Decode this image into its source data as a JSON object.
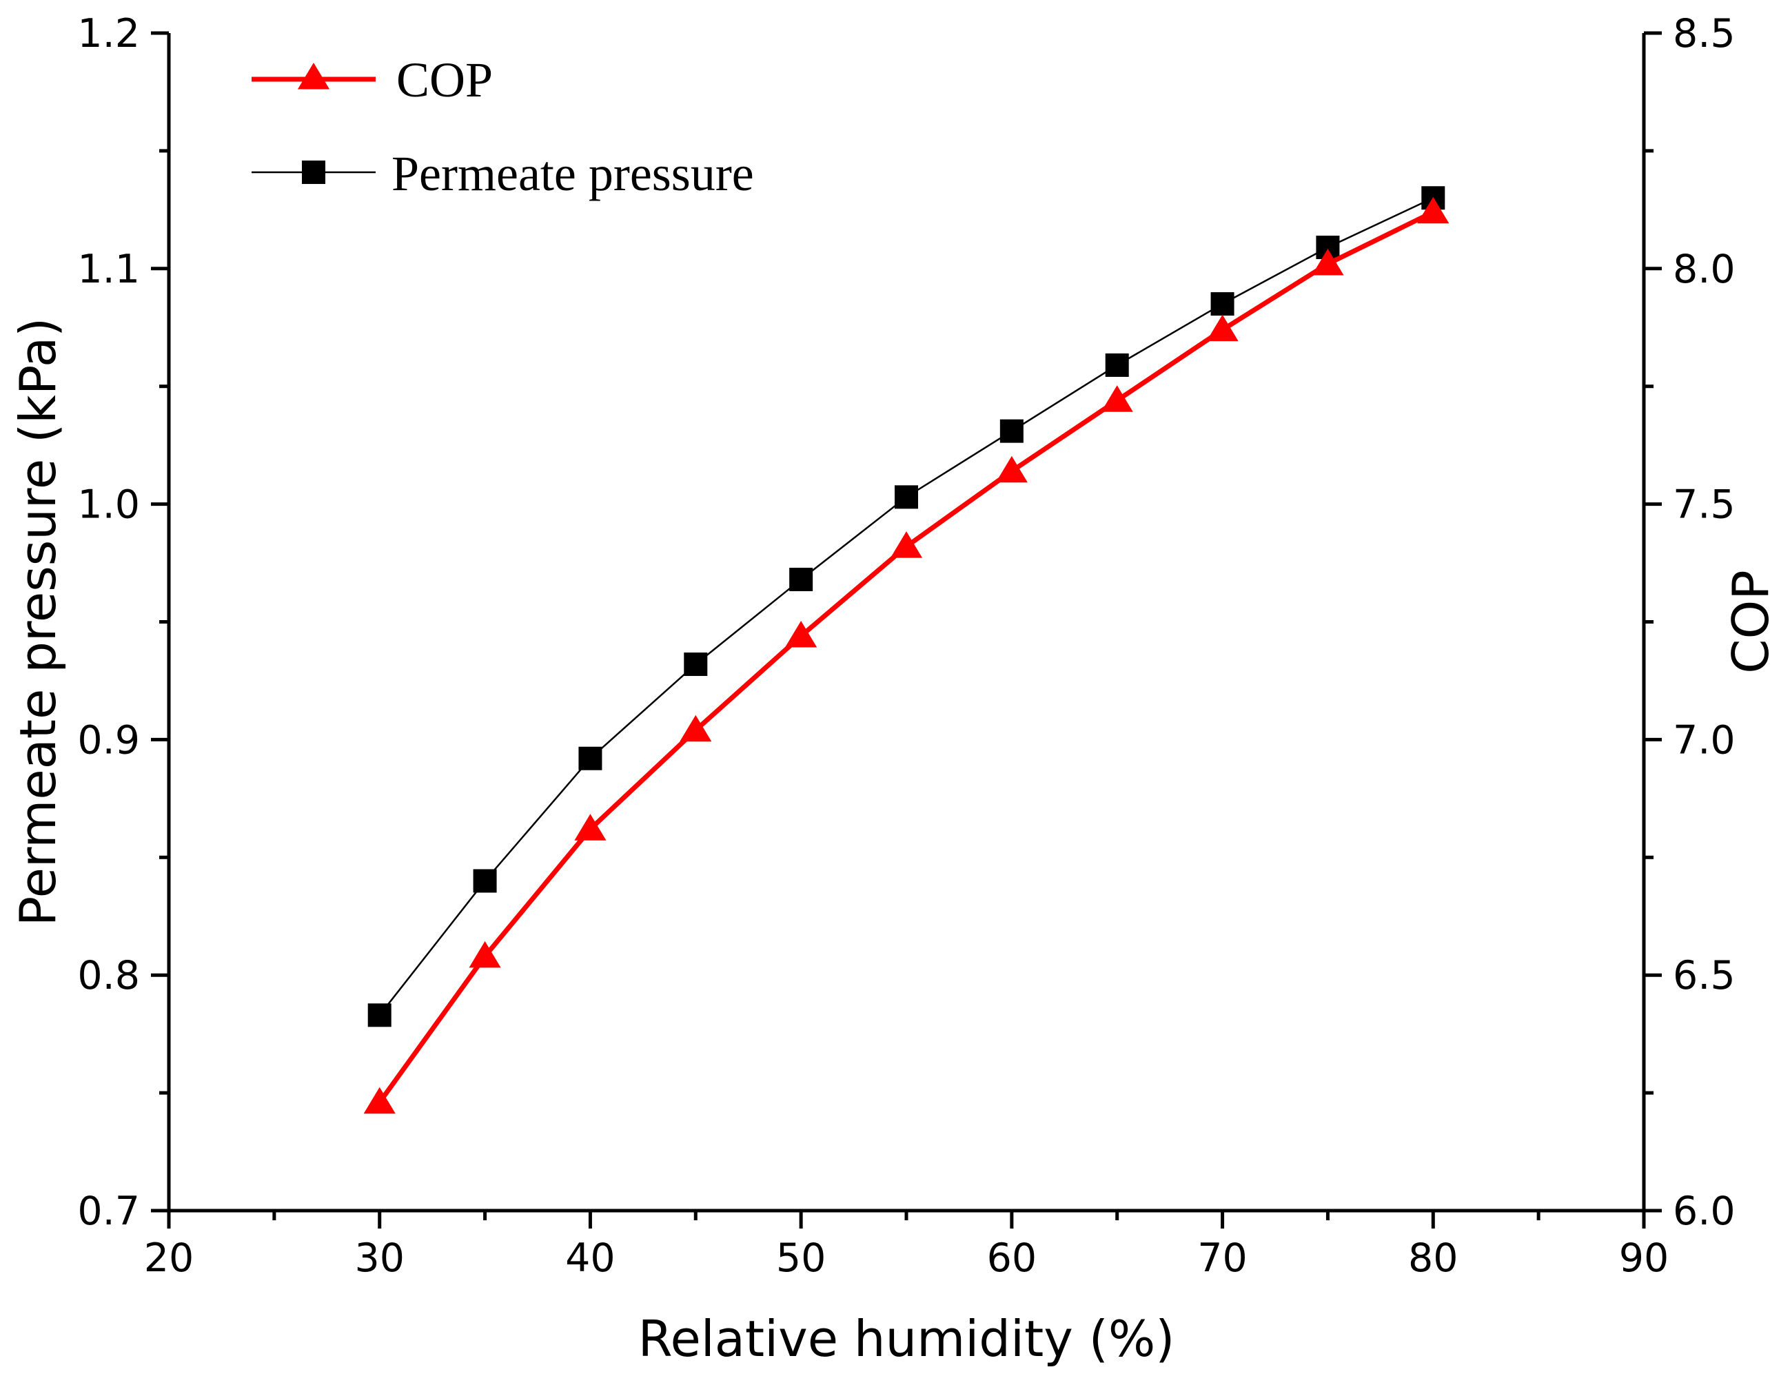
{
  "colors": {
    "cop": "#ff0000",
    "permeate": "#000000",
    "axis": "#000000",
    "background": "#ffffff"
  },
  "chart_data": {
    "type": "line",
    "title": "",
    "xlabel": "Relative humidity (%)",
    "ylabel_left": "Permeate pressure (kPa)",
    "ylabel_right": "COP",
    "xlim": [
      20,
      90
    ],
    "ylim_left": [
      0.7,
      1.2
    ],
    "ylim_right": [
      6.0,
      8.5
    ],
    "x_ticks": [
      "20",
      "30",
      "40",
      "50",
      "60",
      "70",
      "80",
      "90"
    ],
    "y_left_ticks": [
      "0.7",
      "0.8",
      "0.9",
      "1.0",
      "1.1",
      "1.2"
    ],
    "y_right_ticks": [
      "6.0",
      "6.5",
      "7.0",
      "7.5",
      "8.0",
      "8.5"
    ],
    "grid": false,
    "legend_placement": "top-left",
    "x": [
      30,
      35,
      40,
      45,
      50,
      55,
      60,
      65,
      70,
      75,
      80
    ],
    "series": [
      {
        "name": "COP",
        "axis": "right",
        "marker": "triangle",
        "values": [
          6.23,
          6.54,
          6.81,
          7.02,
          7.22,
          7.41,
          7.57,
          7.72,
          7.87,
          8.01,
          8.12
        ]
      },
      {
        "name": "Permeate pressure",
        "axis": "left",
        "marker": "square",
        "values": [
          0.783,
          0.84,
          0.892,
          0.932,
          0.968,
          1.003,
          1.031,
          1.059,
          1.085,
          1.109,
          1.13
        ]
      }
    ]
  }
}
